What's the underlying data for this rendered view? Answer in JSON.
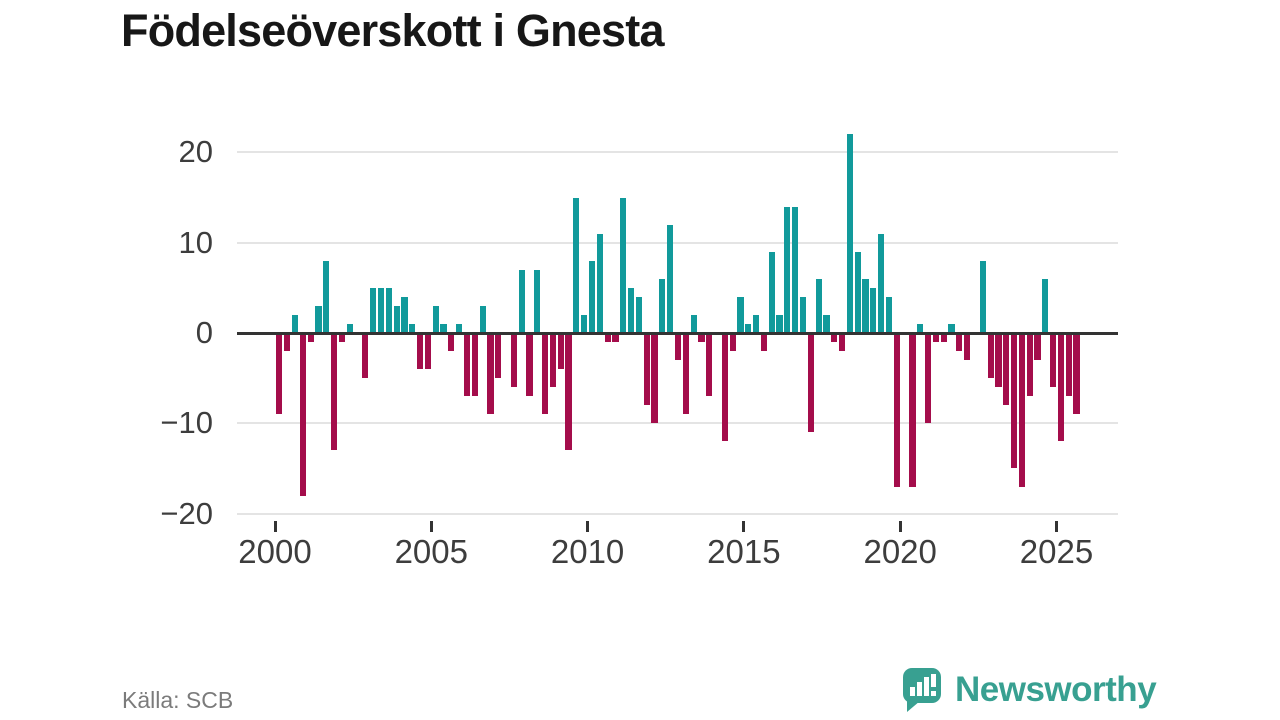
{
  "title": "Födelseöverskott i Gnesta",
  "source": "Källa: SCB",
  "branding": {
    "wordmark": "Newsworthy"
  },
  "colors": {
    "positive": "#119a9b",
    "negative": "#a40d4b",
    "brand": "#38a091",
    "axis_line": "#333333",
    "gridline": "#e4e4e4",
    "tick_text": "#3d3d3d",
    "title_text": "#171717",
    "source_text": "#7b7b7b",
    "background": "#ffffff"
  },
  "chart_data": {
    "type": "bar",
    "title": "Födelseöverskott i Gnesta",
    "frequency": "quarterly",
    "start": "2000 Q1",
    "end": "2025 Q3",
    "xlabel": "",
    "ylabel": "",
    "ylim": [
      -22,
      23.5
    ],
    "grid": "horizontal",
    "legend": "none",
    "y_ticks": [
      {
        "value": 20,
        "label": "20"
      },
      {
        "value": 10,
        "label": "10"
      },
      {
        "value": 0,
        "label": "0"
      },
      {
        "value": -10,
        "label": "−10"
      },
      {
        "value": -20,
        "label": "−20"
      }
    ],
    "x_ticks": [
      {
        "year": 2000,
        "label": "2000"
      },
      {
        "year": 2005,
        "label": "2005"
      },
      {
        "year": 2010,
        "label": "2010"
      },
      {
        "year": 2015,
        "label": "2015"
      },
      {
        "year": 2020,
        "label": "2020"
      },
      {
        "year": 2025,
        "label": "2025"
      }
    ],
    "categories": [
      "2000 Q1",
      "2000 Q2",
      "2000 Q3",
      "2000 Q4",
      "2001 Q1",
      "2001 Q2",
      "2001 Q3",
      "2001 Q4",
      "2002 Q1",
      "2002 Q2",
      "2002 Q3",
      "2002 Q4",
      "2003 Q1",
      "2003 Q2",
      "2003 Q3",
      "2003 Q4",
      "2004 Q1",
      "2004 Q2",
      "2004 Q3",
      "2004 Q4",
      "2005 Q1",
      "2005 Q2",
      "2005 Q3",
      "2005 Q4",
      "2006 Q1",
      "2006 Q2",
      "2006 Q3",
      "2006 Q4",
      "2007 Q1",
      "2007 Q2",
      "2007 Q3",
      "2007 Q4",
      "2008 Q1",
      "2008 Q2",
      "2008 Q3",
      "2008 Q4",
      "2009 Q1",
      "2009 Q2",
      "2009 Q3",
      "2009 Q4",
      "2010 Q1",
      "2010 Q2",
      "2010 Q3",
      "2010 Q4",
      "2011 Q1",
      "2011 Q2",
      "2011 Q3",
      "2011 Q4",
      "2012 Q1",
      "2012 Q2",
      "2012 Q3",
      "2012 Q4",
      "2013 Q1",
      "2013 Q2",
      "2013 Q3",
      "2013 Q4",
      "2014 Q1",
      "2014 Q2",
      "2014 Q3",
      "2014 Q4",
      "2015 Q1",
      "2015 Q2",
      "2015 Q3",
      "2015 Q4",
      "2016 Q1",
      "2016 Q2",
      "2016 Q3",
      "2016 Q4",
      "2017 Q1",
      "2017 Q2",
      "2017 Q3",
      "2017 Q4",
      "2018 Q1",
      "2018 Q2",
      "2018 Q3",
      "2018 Q4",
      "2019 Q1",
      "2019 Q2",
      "2019 Q3",
      "2019 Q4",
      "2020 Q1",
      "2020 Q2",
      "2020 Q3",
      "2020 Q4",
      "2021 Q1",
      "2021 Q2",
      "2021 Q3",
      "2021 Q4",
      "2022 Q1",
      "2022 Q2",
      "2022 Q3",
      "2022 Q4",
      "2023 Q1",
      "2023 Q2",
      "2023 Q3",
      "2023 Q4",
      "2024 Q1",
      "2024 Q2",
      "2024 Q3",
      "2024 Q4",
      "2025 Q1",
      "2025 Q2",
      "2025 Q3"
    ],
    "values": [
      -9,
      -2,
      2,
      -18,
      -1,
      3,
      8,
      -13,
      -1,
      1,
      0,
      -5,
      5,
      5,
      5,
      3,
      4,
      1,
      -4,
      -4,
      3,
      1,
      -2,
      1,
      -7,
      -7,
      3,
      -9,
      -5,
      0,
      -6,
      7,
      -7,
      7,
      -9,
      -6,
      -4,
      -13,
      15,
      2,
      8,
      11,
      -1,
      -1,
      15,
      5,
      4,
      -8,
      -10,
      6,
      12,
      -3,
      -9,
      2,
      -1,
      -7,
      0,
      -12,
      -2,
      4,
      1,
      2,
      -2,
      9,
      2,
      14,
      14,
      4,
      -11,
      6,
      2,
      -1,
      -2,
      22,
      9,
      6,
      5,
      11,
      4,
      -17,
      0,
      -17,
      1,
      -10,
      -1,
      -1,
      1,
      -2,
      -3,
      0,
      8,
      -5,
      -6,
      -8,
      -15,
      -17,
      -7,
      -3,
      6,
      -6,
      -12,
      -7,
      -9
    ]
  }
}
